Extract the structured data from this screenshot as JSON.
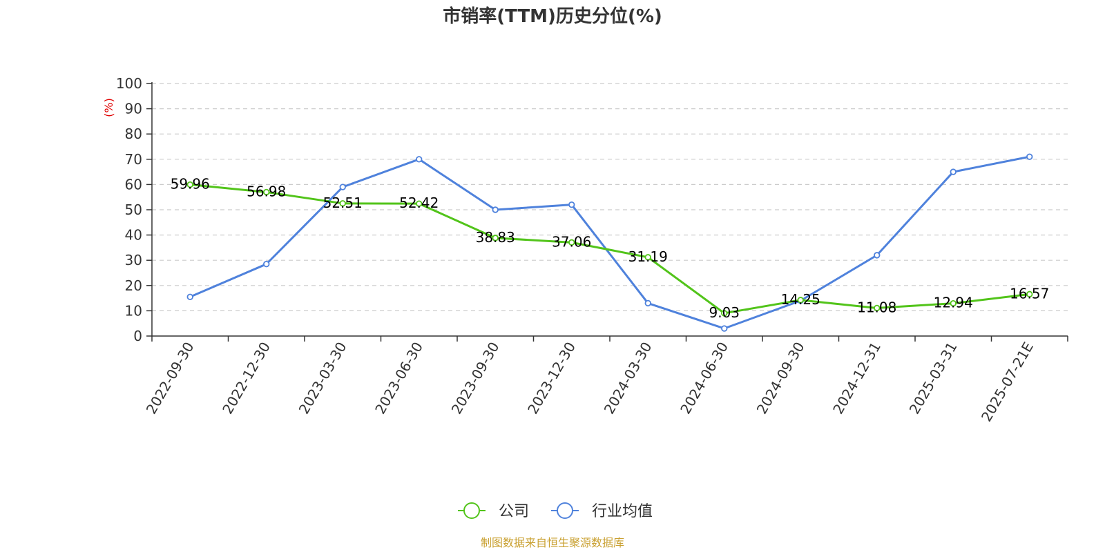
{
  "chart_data": {
    "type": "line",
    "title": "市销率(TTM)历史分位(%)",
    "y_unit": "(%)",
    "ylim": [
      0,
      100
    ],
    "y_ticks": [
      0,
      10,
      20,
      30,
      40,
      50,
      60,
      70,
      80,
      90,
      100
    ],
    "grid": true,
    "legend_position": "bottom-center",
    "categories": [
      "2022-09-30",
      "2022-12-30",
      "2023-03-30",
      "2023-06-30",
      "2023-09-30",
      "2023-12-30",
      "2024-03-30",
      "2024-06-30",
      "2024-09-30",
      "2024-12-31",
      "2025-03-31",
      "2025-07-21E"
    ],
    "series": [
      {
        "name": "公司",
        "color": "#52c41a",
        "values": [
          59.96,
          56.98,
          52.51,
          52.42,
          38.83,
          37.06,
          31.19,
          9.03,
          14.25,
          11.08,
          12.94,
          16.57
        ],
        "labels": [
          "59.96",
          "56.98",
          "52.51",
          "52.42",
          "38.83",
          "37.06",
          "31.19",
          "9.03",
          "14.25",
          "11.08",
          "12.94",
          "16.57"
        ]
      },
      {
        "name": "行业均值",
        "color": "#4f82dc",
        "values": [
          15.5,
          28.5,
          59,
          70,
          50,
          52,
          13,
          3,
          14,
          32,
          65,
          71
        ]
      }
    ]
  },
  "source": "制图数据来自恒生聚源数据库"
}
